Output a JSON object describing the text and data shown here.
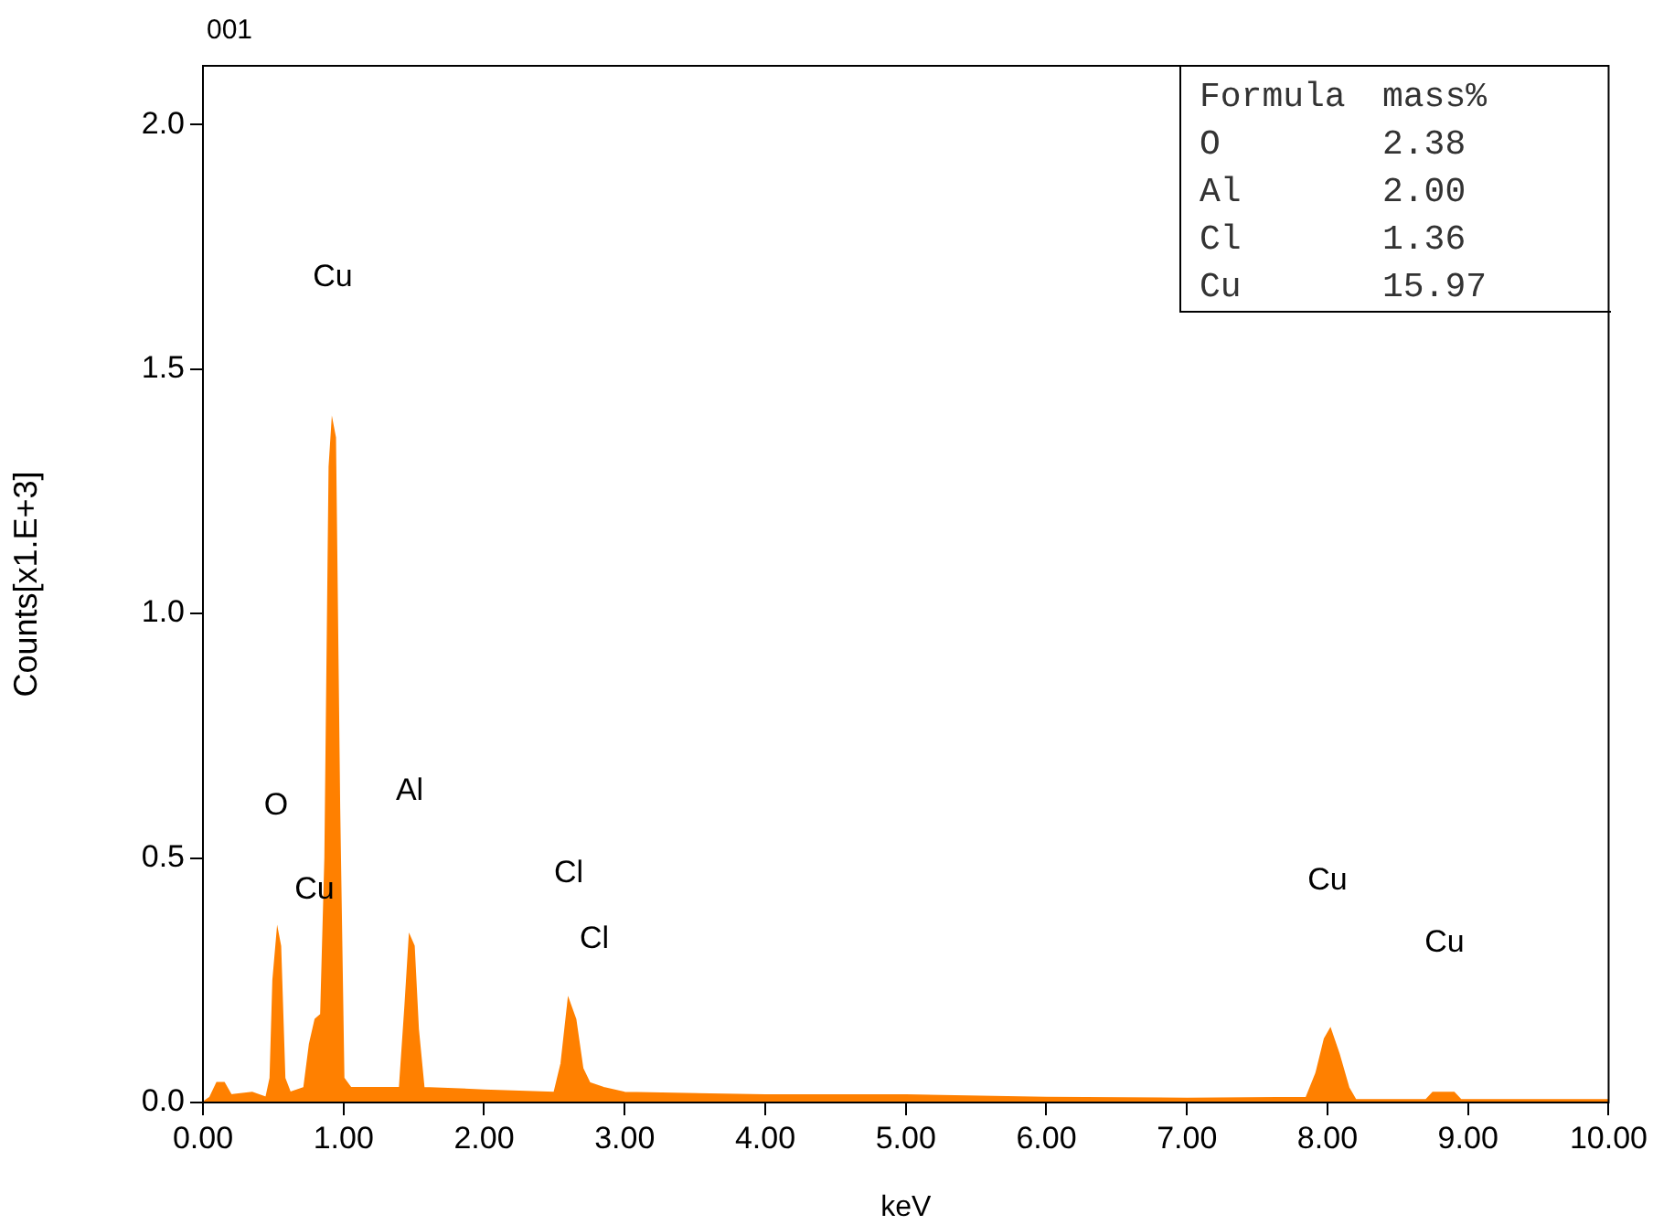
{
  "chart_data": {
    "type": "area",
    "title": "001",
    "xlabel": "keV",
    "ylabel": "Counts[x1.E+3]",
    "color": "#ff8000",
    "x": [
      0,
      0.05,
      0.1,
      0.15,
      0.2,
      0.35,
      0.45,
      0.48,
      0.5,
      0.53,
      0.55,
      0.58,
      0.62,
      0.72,
      0.76,
      0.8,
      0.84,
      0.87,
      0.9,
      0.92,
      0.94,
      0.97,
      1.0,
      1.05,
      1.4,
      1.44,
      1.47,
      1.5,
      1.53,
      1.57,
      2.0,
      2.5,
      2.55,
      2.6,
      2.65,
      2.7,
      2.75,
      2.85,
      3.0,
      4.0,
      5.0,
      6.0,
      7.0,
      7.85,
      7.92,
      7.98,
      8.02,
      8.08,
      8.15,
      8.2,
      8.7,
      8.75,
      8.9,
      8.95,
      10.0
    ],
    "values": [
      0,
      0.01,
      0.04,
      0.04,
      0.015,
      0.02,
      0.01,
      0.05,
      0.25,
      0.35,
      0.32,
      0.05,
      0.02,
      0.03,
      0.12,
      0.17,
      0.18,
      0.5,
      1.3,
      1.39,
      1.36,
      0.6,
      0.05,
      0.03,
      0.03,
      0.2,
      0.34,
      0.32,
      0.15,
      0.03,
      0.025,
      0.02,
      0.08,
      0.21,
      0.17,
      0.07,
      0.04,
      0.03,
      0.02,
      0.015,
      0.015,
      0.01,
      0.008,
      0.01,
      0.06,
      0.13,
      0.15,
      0.1,
      0.03,
      0.005,
      0.005,
      0.02,
      0.02,
      0.005,
      0.005
    ],
    "xlim": [
      0,
      10
    ],
    "ylim": [
      0,
      2.12
    ],
    "xticks": [
      {
        "value": 0,
        "label": "0.00"
      },
      {
        "value": 1,
        "label": "1.00"
      },
      {
        "value": 2,
        "label": "2.00"
      },
      {
        "value": 3,
        "label": "3.00"
      },
      {
        "value": 4,
        "label": "4.00"
      },
      {
        "value": 5,
        "label": "5.00"
      },
      {
        "value": 6,
        "label": "6.00"
      },
      {
        "value": 7,
        "label": "7.00"
      },
      {
        "value": 8,
        "label": "8.00"
      },
      {
        "value": 9,
        "label": "9.00"
      },
      {
        "value": 10,
        "label": "10.00"
      }
    ],
    "yticks": [
      {
        "value": 0,
        "label": "0.0"
      },
      {
        "value": 0.5,
        "label": "0.5"
      },
      {
        "value": 1,
        "label": "1.0"
      },
      {
        "value": 1.5,
        "label": "1.5"
      },
      {
        "value": 2,
        "label": "2.0"
      }
    ],
    "grid": false,
    "legend": false,
    "annotations": [
      "Cu",
      "O",
      "Cu",
      "Al",
      "Cl",
      "Cl",
      "Cu",
      "Cu",
      "Formula",
      "mass%",
      "O",
      "2.38",
      "Al",
      "2.00",
      "Cl",
      "1.36",
      "Cu",
      "15.97"
    ]
  }
}
